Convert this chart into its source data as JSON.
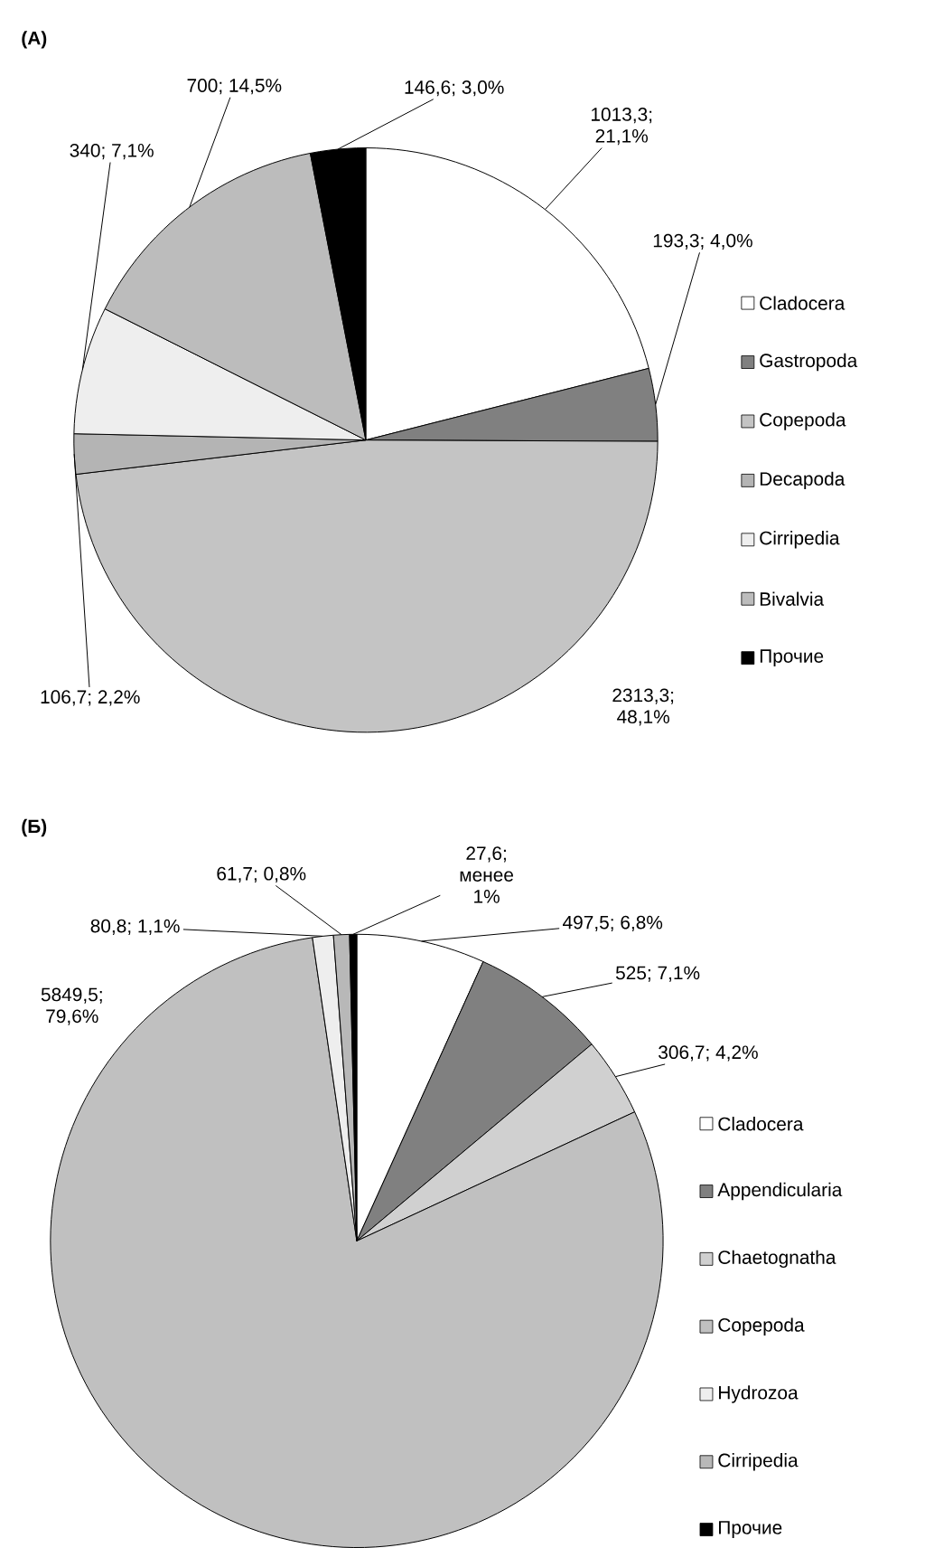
{
  "chart_data": [
    {
      "type": "pie",
      "title": "(А)",
      "categories": [
        "Cladocera",
        "Gastropoda",
        "Copepoda",
        "Decapoda",
        "Cirripedia",
        "Bivalvia",
        "Прочие"
      ],
      "values": [
        1013.3,
        193.3,
        2313.3,
        106.7,
        340,
        700,
        146.6
      ],
      "colors": [
        "#ffffff",
        "#808080",
        "#c4c4c4",
        "#b4b4b4",
        "#eeeeee",
        "#bcbcbc",
        "#000000"
      ],
      "value_labels": [
        "1013,3; 21,1%",
        "193,3; 4,0%",
        "2313,3; 48,1%",
        "106,7; 2,2%",
        "340; 7,1%",
        "700; 14,5%",
        "146,6; 3,0%"
      ],
      "legend": "right"
    },
    {
      "type": "pie",
      "title": "(Б)",
      "categories": [
        "Cladocera",
        "Appendicularia",
        "Chaetognatha",
        "Copepoda",
        "Hydrozoa",
        "Cirripedia",
        "Прочие"
      ],
      "values": [
        497.5,
        525,
        306.7,
        5849.5,
        80.8,
        61.7,
        27.6
      ],
      "colors": [
        "#ffffff",
        "#808080",
        "#d0d0d0",
        "#c0c0c0",
        "#eeeeee",
        "#b8b8b8",
        "#000000"
      ],
      "value_labels": [
        "497,5; 6,8%",
        "525; 7,1%",
        "306,7; 4,2%",
        "5849,5; 79,6%",
        "80,8; 1,1%",
        "61,7; 0,8%",
        "27,6; менее 1%"
      ],
      "legend": "right"
    }
  ]
}
